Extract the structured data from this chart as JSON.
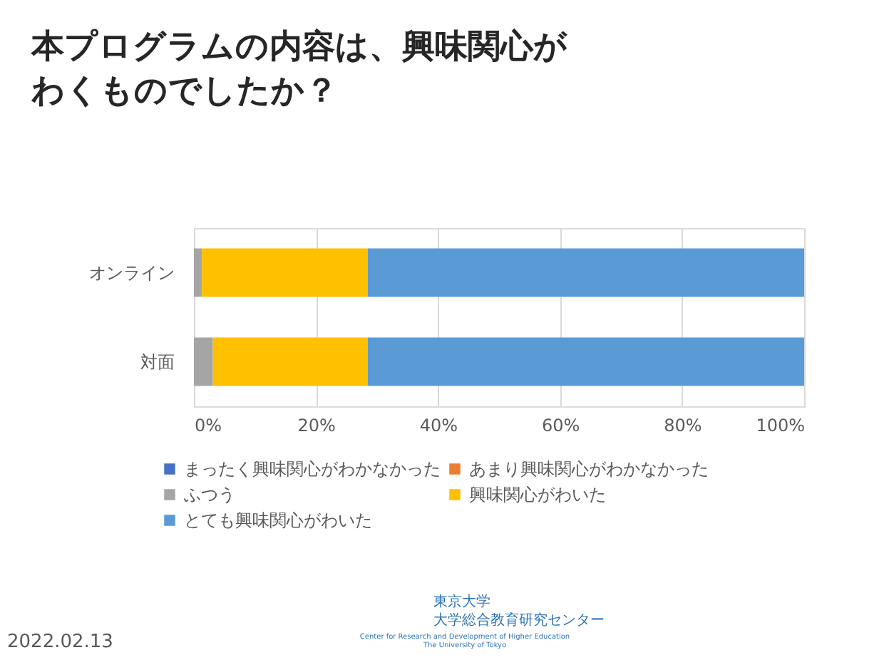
{
  "chart_data": {
    "type": "bar",
    "orientation": "horizontal",
    "stacked": true,
    "title": "本プログラムの内容は、興味関心がわくものでしたか？",
    "categories": [
      "オンライン",
      "対面"
    ],
    "series": [
      {
        "name": "まったく興味関心がわかなかった",
        "color": "#4472c4",
        "values": [
          0,
          0
        ]
      },
      {
        "name": "あまり興味関心がわかなかった",
        "color": "#ed7d31",
        "values": [
          0,
          0
        ]
      },
      {
        "name": "ふつう",
        "color": "#a5a5a5",
        "values": [
          1.3,
          3.1
        ]
      },
      {
        "name": "興味関心がわいた",
        "color": "#ffc000",
        "values": [
          27.2,
          25.4
        ]
      },
      {
        "name": "とても興味関心がわいた",
        "color": "#5b9bd5",
        "values": [
          71.5,
          71.5
        ]
      }
    ],
    "xlim": [
      0,
      100
    ],
    "xticks": [
      {
        "value": 0,
        "label": "0%"
      },
      {
        "value": 20,
        "label": "20%"
      },
      {
        "value": 40,
        "label": "40%"
      },
      {
        "value": 60,
        "label": "60%"
      },
      {
        "value": 80,
        "label": "80%"
      },
      {
        "value": 100,
        "label": "100%"
      }
    ],
    "grid": "x",
    "legend": "bottom",
    "annotations": [
      "2022.02.13",
      "東京大学",
      "大学総合教育研究センター",
      "Center for Research and Development of Higher Education",
      "The University of Tokyo"
    ]
  }
}
